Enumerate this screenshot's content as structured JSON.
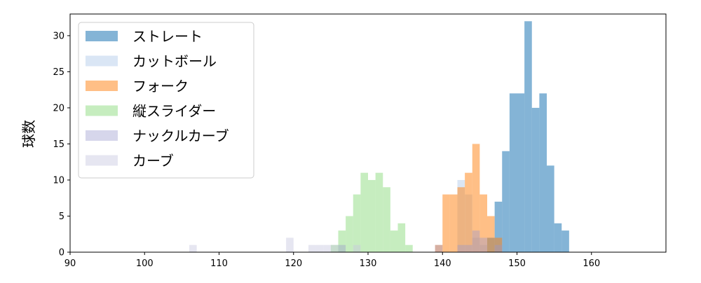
{
  "chart_data": {
    "type": "bar",
    "subtype": "histogram",
    "title": "",
    "xlabel": "",
    "ylabel": "球数",
    "xlim": [
      90,
      170
    ],
    "ylim": [
      0,
      33
    ],
    "x_ticks": [
      90,
      100,
      110,
      120,
      130,
      140,
      150,
      160
    ],
    "y_ticks": [
      0,
      5,
      10,
      15,
      20,
      25,
      30
    ],
    "bin_width": 1,
    "grid": false,
    "legend_position": "top-left",
    "series": [
      {
        "name": "ストレート",
        "color": "#1f77b4",
        "opacity": 0.55,
        "bins": [
          [
            146,
            2
          ],
          [
            147,
            7
          ],
          [
            148,
            14
          ],
          [
            149,
            22
          ],
          [
            150,
            22
          ],
          [
            151,
            32
          ],
          [
            152,
            20
          ],
          [
            153,
            22
          ],
          [
            154,
            12
          ],
          [
            155,
            4
          ],
          [
            156,
            3
          ]
        ]
      },
      {
        "name": "カットボール",
        "color": "#aec7e8",
        "opacity": 0.45,
        "bins": [
          [
            142,
            10
          ],
          [
            143,
            8
          ],
          [
            144,
            2
          ],
          [
            145,
            1
          ]
        ]
      },
      {
        "name": "フォーク",
        "color": "#ff7f0e",
        "opacity": 0.5,
        "bins": [
          [
            139,
            1
          ],
          [
            140,
            8
          ],
          [
            141,
            8
          ],
          [
            142,
            9
          ],
          [
            143,
            11
          ],
          [
            144,
            15
          ],
          [
            145,
            8
          ],
          [
            146,
            5
          ],
          [
            147,
            2
          ]
        ]
      },
      {
        "name": "縦スライダー",
        "color": "#98df8a",
        "opacity": 0.55,
        "bins": [
          [
            125,
            1
          ],
          [
            126,
            3
          ],
          [
            127,
            5
          ],
          [
            128,
            8
          ],
          [
            129,
            11
          ],
          [
            130,
            10
          ],
          [
            131,
            11
          ],
          [
            132,
            9
          ],
          [
            133,
            3
          ],
          [
            134,
            4
          ],
          [
            135,
            1
          ]
        ]
      },
      {
        "name": "ナックルカーブ",
        "color": "#9999cc",
        "opacity": 0.4,
        "bins": [
          [
            126,
            1
          ],
          [
            139,
            1
          ],
          [
            142,
            1
          ],
          [
            143,
            1
          ],
          [
            144,
            3
          ],
          [
            145,
            2
          ],
          [
            147,
            1
          ]
        ]
      },
      {
        "name": "カーブ",
        "color": "#c8c8e0",
        "opacity": 0.45,
        "bins": [
          [
            106,
            1
          ],
          [
            119,
            2
          ],
          [
            122,
            1
          ],
          [
            123,
            1
          ],
          [
            124,
            1
          ],
          [
            125,
            1
          ],
          [
            128,
            1
          ]
        ]
      }
    ]
  }
}
